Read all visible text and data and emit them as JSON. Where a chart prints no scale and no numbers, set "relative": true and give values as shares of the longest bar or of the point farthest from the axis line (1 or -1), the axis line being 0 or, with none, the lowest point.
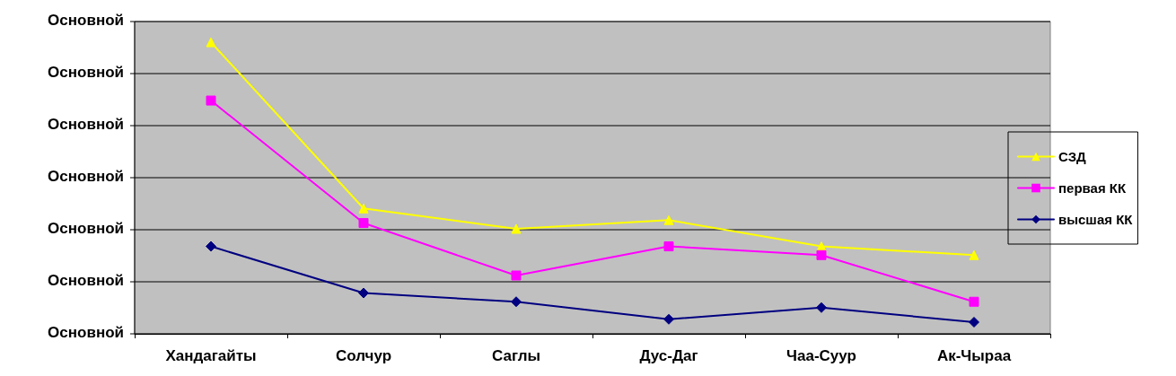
{
  "chart_data": {
    "type": "line",
    "relative": true,
    "categories": [
      "Хандагайты",
      "Солчур",
      "Саглы",
      "Дус-Даг",
      "Чаа-Суур",
      "Ак-Чыраа"
    ],
    "series": [
      {
        "name": "СЗД",
        "color": "#ffff00",
        "marker": "triangle",
        "values": [
          1,
          0.43,
          0.36,
          0.39,
          0.3,
          0.27
        ]
      },
      {
        "name": "первая КК",
        "color": "#ff00ff",
        "marker": "square",
        "values": [
          0.8,
          0.38,
          0.2,
          0.3,
          0.27,
          0.11
        ]
      },
      {
        "name": "высшая КК",
        "color": "#000080",
        "marker": "diamond",
        "values": [
          0.3,
          0.14,
          0.11,
          0.05,
          0.09,
          0.04
        ]
      }
    ],
    "annotations": [
      "Основной",
      "Основной",
      "Основной",
      "Основной",
      "Основной",
      "Основной",
      "Основной"
    ],
    "grid": "y",
    "legend": "right",
    "line_style": "solid"
  }
}
